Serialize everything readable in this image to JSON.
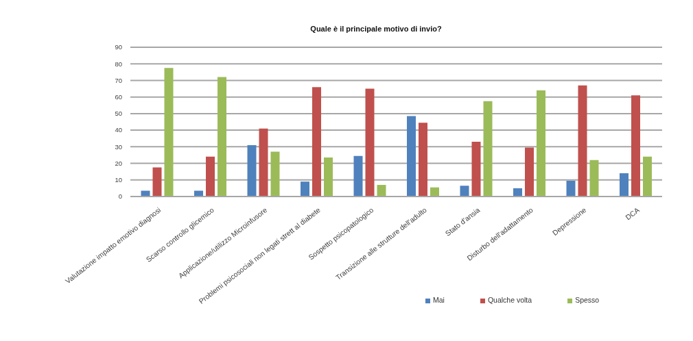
{
  "chart_data": {
    "type": "bar",
    "title": "Quale è il principale motivo di invio?",
    "categories": [
      "Valutazione impatto emotivo diagnosi",
      "Scarso controllo glicemico",
      "Applicazione/utilizzo Microinfusore",
      "Problemi psicosociali non legati strett al diabete",
      "Sospetto psicopatologico",
      "Transizione alle strutture dell'adulto",
      "Stato d'ansia",
      "Disturbo dell'adattamento",
      "Depressione",
      "DCA"
    ],
    "series": [
      {
        "name": "Mai",
        "color": "#4f81bd",
        "values": [
          3.5,
          3.5,
          31,
          9,
          24.5,
          48.5,
          6.5,
          5,
          9.5,
          14
        ]
      },
      {
        "name": "Qualche volta",
        "color": "#c0504d",
        "values": [
          17.5,
          24,
          41,
          66,
          65,
          44.5,
          33,
          29.5,
          67,
          61
        ]
      },
      {
        "name": "Spesso",
        "color": "#9bbb59",
        "values": [
          77.5,
          72,
          27,
          23.5,
          7,
          5.5,
          57.5,
          64,
          22,
          24
        ]
      }
    ],
    "ylim": [
      0,
      90
    ],
    "yticks": [
      0,
      10,
      20,
      30,
      40,
      50,
      60,
      70,
      80,
      90
    ],
    "grid": "y",
    "legend": "bottom right"
  }
}
